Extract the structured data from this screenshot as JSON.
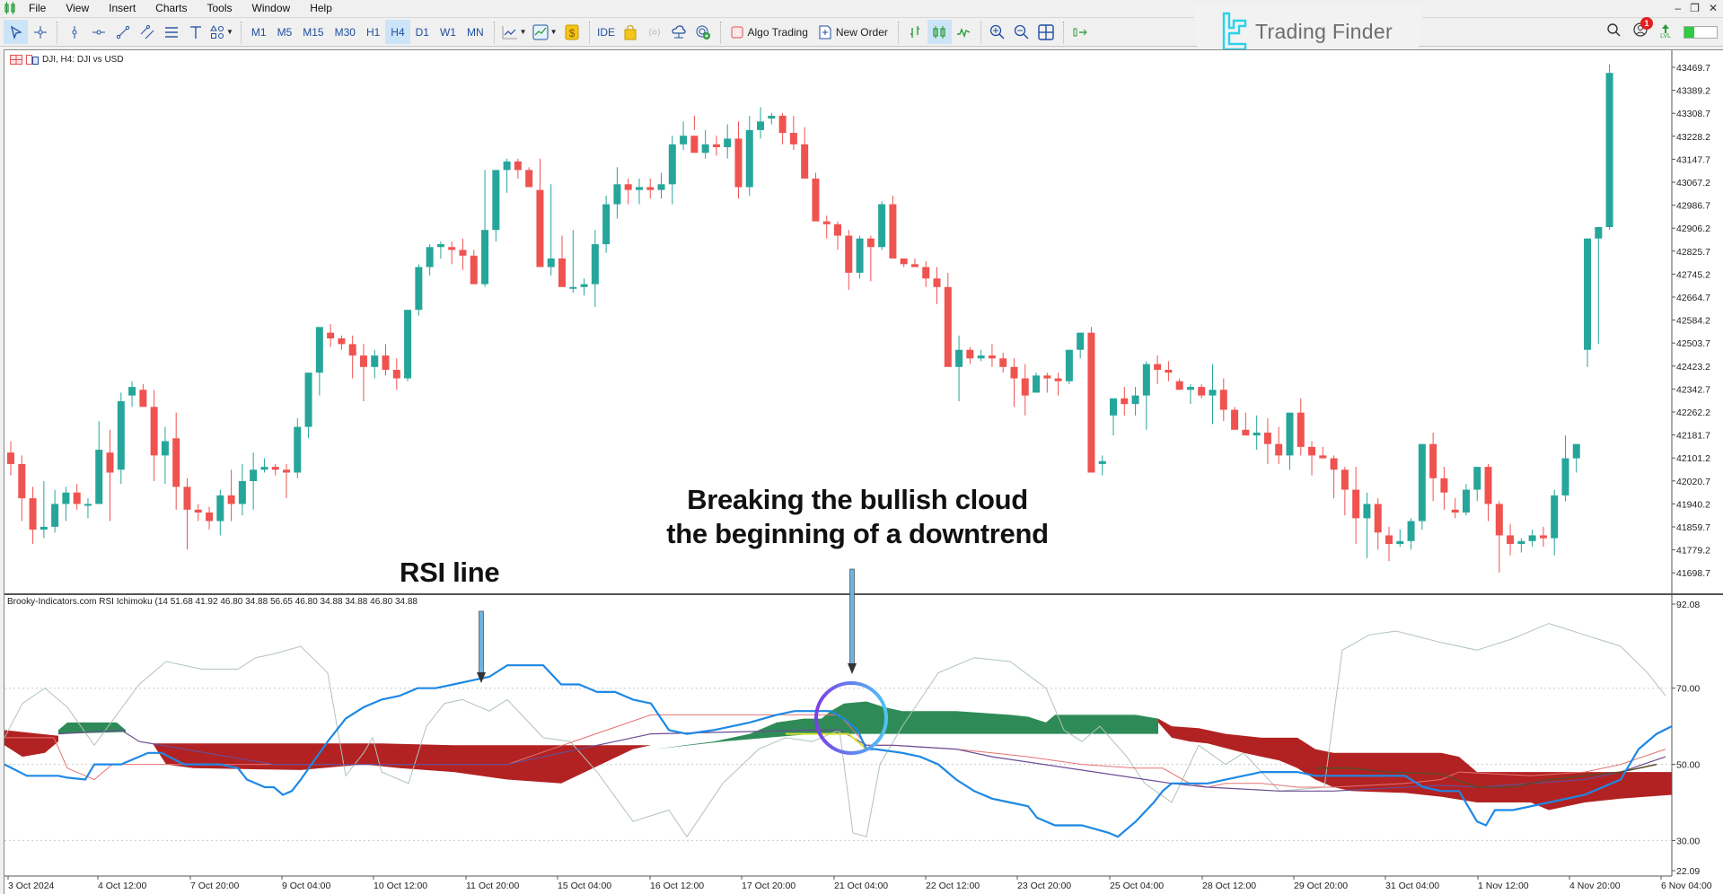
{
  "menu": {
    "items": [
      "File",
      "View",
      "Insert",
      "Charts",
      "Tools",
      "Window",
      "Help"
    ]
  },
  "toolbar": {
    "drawing_tools": [
      "cursor",
      "crosshair",
      "vertical-line",
      "horizontal-line",
      "trend-line",
      "channel",
      "fibonacci",
      "text",
      "shapes"
    ],
    "timeframes": [
      "M1",
      "M5",
      "M15",
      "M30",
      "H1",
      "H4",
      "D1",
      "W1",
      "MN"
    ],
    "active_timeframe": "H4",
    "ide_label": "IDE",
    "algo_trading_label": "Algo Trading",
    "new_order_label": "New Order",
    "notification_count": "1",
    "lvl_label": "LVL"
  },
  "brand": {
    "name": "Trading Finder"
  },
  "chart": {
    "title": "DJI, H4:  DJI vs USD",
    "symbol": "DJI",
    "timeframe": "H4",
    "colors": {
      "bull": "#26a69a",
      "bear": "#ef5350",
      "cloud_bull": "#2e8b57",
      "cloud_bear": "#b22222",
      "rsi": "#1e88e5",
      "kijun": "#e57373",
      "chikou": "#b0c4b8",
      "tenkan": "#6a4c93"
    },
    "price_axis": [
      "43469.7",
      "43389.2",
      "43308.7",
      "43228.2",
      "43147.7",
      "43067.2",
      "42986.7",
      "42906.2",
      "42825.7",
      "42745.2",
      "42664.7",
      "42584.2",
      "42503.7",
      "42423.2",
      "42342.7",
      "42262.2",
      "42181.7",
      "42101.2",
      "42020.7",
      "41940.2",
      "41859.7",
      "41779.2",
      "41698.7"
    ],
    "time_axis": [
      "3 Oct 2024",
      "4 Oct 12:00",
      "7 Oct 20:00",
      "9 Oct 04:00",
      "10 Oct 12:00",
      "11 Oct 20:00",
      "15 Oct 04:00",
      "16 Oct 12:00",
      "17 Oct 20:00",
      "21 Oct 04:00",
      "22 Oct 12:00",
      "23 Oct 20:00",
      "25 Oct 04:00",
      "28 Oct 12:00",
      "29 Oct 20:00",
      "31 Oct 04:00",
      "1 Nov 12:00",
      "4 Nov 20:00",
      "6 Nov 04:00"
    ]
  },
  "indicator": {
    "label": "Brooky-Indicators.com RSI Ichimoku (14 51.68 41.92 46.80 34.88 56.65 46.80 34.88 34.88 46.80 34.88",
    "axis": [
      "92.08",
      "70.00",
      "50.00",
      "30.00",
      "22.09"
    ],
    "levels": [
      70,
      50,
      30
    ]
  },
  "annotations": {
    "rsi_line": "RSI line",
    "cloud_break_line1": "Breaking the bullish cloud",
    "cloud_break_line2": "the beginning of a downtrend"
  },
  "chart_data": {
    "type": "candlestick",
    "title": "DJI, H4: DJI vs USD",
    "ylim": [
      41620,
      43500
    ],
    "candles_ohlc": [
      [
        42120,
        42160,
        42040,
        42080
      ],
      [
        42080,
        42110,
        41880,
        41960
      ],
      [
        41960,
        42000,
        41800,
        41850
      ],
      [
        41850,
        42020,
        41820,
        41860
      ],
      [
        41860,
        41990,
        41840,
        41940
      ],
      [
        41940,
        42000,
        41880,
        41980
      ],
      [
        41980,
        42010,
        41920,
        41940
      ],
      [
        41940,
        41960,
        41890,
        41940
      ],
      [
        41940,
        42230,
        41940,
        42130
      ],
      [
        42120,
        42200,
        41880,
        42050
      ],
      [
        42060,
        42330,
        42010,
        42300
      ],
      [
        42320,
        42370,
        42280,
        42350
      ],
      [
        42340,
        42360,
        42290,
        42280
      ],
      [
        42280,
        42340,
        42020,
        42110
      ],
      [
        42110,
        42210,
        42010,
        42160
      ],
      [
        42170,
        42260,
        41920,
        42000
      ],
      [
        42000,
        42030,
        41780,
        41920
      ],
      [
        41920,
        41940,
        41880,
        41910
      ],
      [
        41910,
        41930,
        41850,
        41880
      ],
      [
        41880,
        41990,
        41830,
        41970
      ],
      [
        41970,
        42060,
        41880,
        41940
      ],
      [
        41940,
        42080,
        41900,
        42020
      ],
      [
        42020,
        42120,
        41920,
        42060
      ],
      [
        42060,
        42100,
        42050,
        42070
      ],
      [
        42070,
        42080,
        42040,
        42060
      ],
      [
        42060,
        42080,
        41960,
        42050
      ],
      [
        42050,
        42240,
        42030,
        42210
      ],
      [
        42210,
        42360,
        42170,
        42400
      ],
      [
        42400,
        42520,
        42320,
        42560
      ],
      [
        42540,
        42570,
        42490,
        42520
      ],
      [
        42520,
        42530,
        42480,
        42500
      ],
      [
        42500,
        42530,
        42380,
        42460
      ],
      [
        42460,
        42500,
        42300,
        42420
      ],
      [
        42420,
        42480,
        42380,
        42460
      ],
      [
        42460,
        42500,
        42390,
        42410
      ],
      [
        42410,
        42450,
        42340,
        42380
      ],
      [
        42380,
        42620,
        42370,
        42620
      ],
      [
        42620,
        42780,
        42600,
        42770
      ],
      [
        42770,
        42850,
        42740,
        42840
      ],
      [
        42840,
        42860,
        42800,
        42850
      ],
      [
        42840,
        42860,
        42780,
        42830
      ],
      [
        42830,
        42870,
        42760,
        42810
      ],
      [
        42810,
        42830,
        42730,
        42710
      ],
      [
        42710,
        43110,
        42700,
        42900
      ],
      [
        42900,
        43110,
        42860,
        43110
      ],
      [
        43110,
        43150,
        43030,
        43140
      ],
      [
        43140,
        43150,
        43080,
        43110
      ],
      [
        43110,
        43120,
        43060,
        43050
      ],
      [
        43040,
        43150,
        42950,
        42770
      ],
      [
        42770,
        43060,
        42740,
        42800
      ],
      [
        42800,
        42880,
        42720,
        42700
      ],
      [
        42700,
        42900,
        42680,
        42700
      ],
      [
        42700,
        42730,
        42670,
        42710
      ],
      [
        42710,
        42900,
        42630,
        42850
      ],
      [
        42850,
        43020,
        42820,
        42990
      ],
      [
        42990,
        43120,
        42940,
        43060
      ],
      [
        43060,
        43080,
        42990,
        43040
      ],
      [
        43040,
        43080,
        42990,
        43050
      ],
      [
        43050,
        43080,
        43010,
        43040
      ],
      [
        43040,
        43100,
        43010,
        43060
      ],
      [
        43060,
        43230,
        42990,
        43200
      ],
      [
        43200,
        43280,
        43180,
        43230
      ],
      [
        43230,
        43300,
        43250,
        43170
      ],
      [
        43170,
        43250,
        43150,
        43200
      ],
      [
        43200,
        43230,
        43160,
        43190
      ],
      [
        43190,
        43270,
        43150,
        43220
      ],
      [
        43220,
        43280,
        43010,
        43050
      ],
      [
        43050,
        43300,
        43020,
        43250
      ],
      [
        43250,
        43330,
        43220,
        43280
      ],
      [
        43290,
        43310,
        43270,
        43300
      ],
      [
        43300,
        43310,
        43200,
        43240
      ],
      [
        43240,
        43300,
        43180,
        43200
      ],
      [
        43200,
        43260,
        43100,
        43080
      ],
      [
        43080,
        43100,
        42950,
        42930
      ],
      [
        42930,
        42950,
        42870,
        42920
      ],
      [
        42920,
        42930,
        42830,
        42880
      ],
      [
        42880,
        42900,
        42690,
        42750
      ],
      [
        42750,
        42880,
        42730,
        42870
      ],
      [
        42870,
        42880,
        42720,
        42840
      ],
      [
        42840,
        43000,
        42830,
        42990
      ],
      [
        42990,
        43020,
        42820,
        42800
      ],
      [
        42800,
        42800,
        42770,
        42780
      ],
      [
        42780,
        42800,
        42770,
        42770
      ],
      [
        42770,
        42790,
        42700,
        42730
      ],
      [
        42730,
        42770,
        42640,
        42700
      ],
      [
        42700,
        42750,
        42500,
        42420
      ],
      [
        42420,
        42530,
        42300,
        42480
      ],
      [
        42480,
        42490,
        42430,
        42450
      ],
      [
        42450,
        42480,
        42440,
        42460
      ],
      [
        42460,
        42500,
        42420,
        42450
      ],
      [
        42450,
        42470,
        42400,
        42420
      ],
      [
        42420,
        42450,
        42280,
        42380
      ],
      [
        42380,
        42430,
        42250,
        42320
      ],
      [
        42330,
        42400,
        42340,
        42390
      ],
      [
        42390,
        42400,
        42330,
        42380
      ],
      [
        42380,
        42400,
        42320,
        42370
      ],
      [
        42370,
        42480,
        42360,
        42480
      ],
      [
        42480,
        42540,
        42450,
        42540
      ],
      [
        42540,
        42560,
        42050,
        42050
      ],
      [
        42080,
        42110,
        42040,
        42090
      ],
      [
        42250,
        42300,
        42180,
        42310
      ],
      [
        42310,
        42350,
        42250,
        42290
      ],
      [
        42290,
        42350,
        42250,
        42320
      ],
      [
        42320,
        42440,
        42200,
        42430
      ],
      [
        42430,
        42460,
        42360,
        42410
      ],
      [
        42410,
        42440,
        42370,
        42400
      ],
      [
        42370,
        42380,
        42350,
        42340
      ],
      [
        42340,
        42360,
        42290,
        42350
      ],
      [
        42350,
        42360,
        42310,
        42320
      ],
      [
        42320,
        42430,
        42220,
        42340
      ],
      [
        42340,
        42380,
        42230,
        42270
      ],
      [
        42270,
        42280,
        42200,
        42200
      ],
      [
        42200,
        42260,
        42190,
        42180
      ],
      [
        42180,
        42250,
        42130,
        42190
      ],
      [
        42190,
        42240,
        42080,
        42150
      ],
      [
        42150,
        42210,
        42080,
        42110
      ],
      [
        42110,
        42240,
        42060,
        42260
      ],
      [
        42260,
        42310,
        42110,
        42140
      ],
      [
        42140,
        42160,
        42040,
        42110
      ],
      [
        42110,
        42140,
        42100,
        42100
      ],
      [
        42100,
        42110,
        41960,
        42060
      ],
      [
        42060,
        42070,
        41900,
        41990
      ],
      [
        41990,
        42070,
        41800,
        41890
      ],
      [
        41890,
        41980,
        41750,
        41940
      ],
      [
        41940,
        41960,
        41780,
        41840
      ],
      [
        41830,
        41860,
        41740,
        41800
      ],
      [
        41800,
        41850,
        41790,
        41810
      ],
      [
        41810,
        41890,
        41780,
        41880
      ],
      [
        41880,
        42150,
        41850,
        42150
      ],
      [
        42150,
        42190,
        41950,
        42030
      ],
      [
        42030,
        42070,
        41920,
        41980
      ],
      [
        41920,
        41960,
        41890,
        41910
      ],
      [
        41910,
        42010,
        41900,
        41990
      ],
      [
        41990,
        42050,
        41950,
        42070
      ],
      [
        42070,
        42080,
        41880,
        41940
      ],
      [
        41940,
        41950,
        41700,
        41830
      ],
      [
        41830,
        41870,
        41760,
        41800
      ],
      [
        41800,
        41820,
        41770,
        41810
      ],
      [
        41810,
        41850,
        41790,
        41830
      ],
      [
        41830,
        41860,
        41790,
        41820
      ],
      [
        41820,
        41990,
        41760,
        41970
      ],
      [
        41970,
        42180,
        41950,
        42100
      ],
      [
        42100,
        42150,
        42050,
        42150
      ],
      [
        42480,
        42780,
        42420,
        42870
      ],
      [
        42870,
        42910,
        42500,
        42910
      ],
      [
        42910,
        43480,
        42900,
        43450
      ]
    ]
  }
}
